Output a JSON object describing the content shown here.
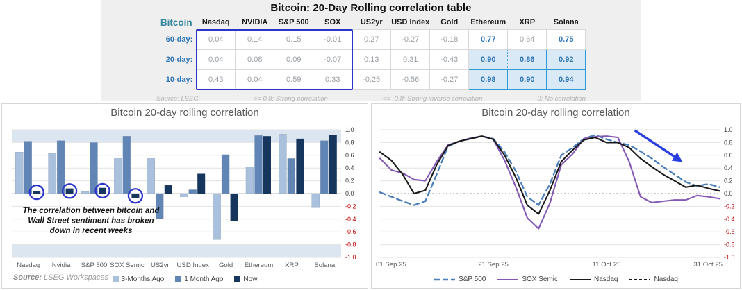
{
  "table": {
    "title": "Bitcoin: 20-Day Rolling correlation table",
    "corner_label": "Bitcoin",
    "columns": [
      "Nasdaq",
      "NVIDIA",
      "S&P 500",
      "SOX",
      "US2yr",
      "USD Index",
      "Gold",
      "Ethereum",
      "XRP",
      "Solana"
    ],
    "rows": [
      {
        "label": "60-day:",
        "values": [
          "0.04",
          "0.14",
          "0.15",
          "-0.01",
          "0.27",
          "-0.27",
          "-0.18",
          "0.77",
          "0.64",
          "0.75"
        ],
        "styles": [
          "plain",
          "plain",
          "plain",
          "plain",
          "plain",
          "plain",
          "plain",
          "blue",
          "muted",
          "blue"
        ]
      },
      {
        "label": "20-day:",
        "values": [
          "0.04",
          "0.08",
          "0.09",
          "-0.07",
          "0.13",
          "0.31",
          "-0.43",
          "0.90",
          "0.86",
          "0.92"
        ],
        "styles": [
          "plain",
          "plain",
          "plain",
          "plain",
          "plain",
          "plain",
          "plain",
          "fill-dot",
          "fill-dot",
          "fill-solid"
        ]
      },
      {
        "label": "10-day:",
        "values": [
          "0.43",
          "0.04",
          "0.59",
          "0.33",
          "-0.25",
          "-0.56",
          "-0.27",
          "0.98",
          "0.90",
          "0.94"
        ],
        "styles": [
          "plain",
          "plain",
          "plain",
          "plain",
          "plain",
          "plain",
          "plain",
          "fill-solid",
          "fill-solid",
          "fill-solid"
        ]
      }
    ],
    "footer_items": [
      "Source: LSEG",
      ">= 0.8: Strong correlation",
      "<= -0.8: Strong inverse correlation",
      "0: No correlation"
    ],
    "colors": {
      "highlight_box": "#2b35c9",
      "crypto_text": "#2e75b6",
      "crypto_fill": "#d9e9f5",
      "corner_teal": "#31859c"
    }
  },
  "chart_data": [
    {
      "type": "bar",
      "title": "Bitcoin 20-day rolling correlation",
      "categories": [
        "Nasdaq",
        "Nvidia",
        "S&P 500",
        "SOX Semic",
        "US2yr",
        "USD Index",
        "Gold",
        "Ethereum",
        "XRP",
        "Solana"
      ],
      "series": [
        {
          "name": "3-Months Ago",
          "color": "#a9c1dd",
          "values": [
            0.65,
            0.63,
            0.03,
            0.55,
            0.55,
            -0.05,
            -0.72,
            0.42,
            0.93,
            -0.22
          ]
        },
        {
          "name": "1 Month Ago",
          "color": "#6185b5",
          "values": [
            0.82,
            0.83,
            0.8,
            0.9,
            -0.4,
            0.06,
            0.61,
            0.91,
            0.55,
            0.83
          ]
        },
        {
          "name": "Now",
          "color": "#17365d",
          "values": [
            0.04,
            0.08,
            0.09,
            -0.07,
            0.13,
            0.31,
            -0.43,
            0.9,
            0.86,
            0.92
          ]
        }
      ],
      "circled_now_categories": [
        "Nasdaq",
        "Nvidia",
        "S&P 500",
        "SOX Semic"
      ],
      "ylim": [
        -1,
        1
      ],
      "ytick_step": 0.2,
      "highlight_bands": [
        [
          0.8,
          1.0
        ],
        [
          -1.0,
          -0.8
        ]
      ],
      "annotation_lines": [
        "The correlation between bitcoin and",
        "Wall Street sentiment has broken",
        "down in recent weeks"
      ],
      "source_label": "Source:",
      "source_value": "LSEG Workspaces",
      "negative_tick_color": "#c00000",
      "band_color": "#dce6f1",
      "circle_color": "#2b35c9"
    },
    {
      "type": "line",
      "title": "Bitcoin 20-day rolling correlation",
      "x_tick_labels": [
        "01 Sep 25",
        "21 Sep 25",
        "11 Oct 25",
        "31 Oct 25"
      ],
      "x_tick_days": [
        0,
        20,
        40,
        60
      ],
      "x_max_day": 60,
      "step_days": 2,
      "ylim": [
        -1,
        1
      ],
      "ytick_step": 0.2,
      "series": [
        {
          "name": "S&P 500",
          "style": "dashed",
          "color": "#4a7ebb",
          "values": [
            0.02,
            -0.05,
            -0.12,
            -0.18,
            -0.12,
            0.3,
            0.74,
            0.82,
            0.86,
            0.9,
            0.86,
            0.65,
            0.35,
            -0.05,
            -0.18,
            0.15,
            0.6,
            0.72,
            0.86,
            0.92,
            0.85,
            0.8,
            0.76,
            0.66,
            0.55,
            0.42,
            0.3,
            0.18,
            0.12,
            0.15,
            0.1
          ]
        },
        {
          "name": "SOX Semic",
          "style": "solid",
          "color": "#8459b3",
          "values": [
            0.55,
            0.37,
            0.32,
            0.22,
            0.2,
            0.5,
            0.76,
            0.82,
            0.87,
            0.9,
            0.85,
            0.52,
            0.1,
            -0.38,
            -0.55,
            -0.15,
            0.45,
            0.62,
            0.86,
            0.89,
            0.9,
            0.88,
            0.5,
            -0.05,
            -0.14,
            -0.12,
            -0.1,
            -0.1,
            -0.03,
            -0.05,
            -0.08
          ]
        },
        {
          "name": "Nasdaq",
          "style": "dashed-short",
          "color": "#1a1a1a",
          "values": [
            0.65,
            0.52,
            0.3,
            0.0,
            0.05,
            0.45,
            0.75,
            0.82,
            0.86,
            0.9,
            0.85,
            0.6,
            0.25,
            -0.18,
            -0.32,
            0.05,
            0.5,
            0.68,
            0.84,
            0.88,
            0.8,
            0.8,
            0.72,
            0.55,
            0.42,
            0.3,
            0.2,
            0.1,
            0.13,
            0.08,
            0.04
          ]
        },
        {
          "name": "Nasdaq",
          "style": "solid",
          "color": "#1a1a1a",
          "values": [
            0.65,
            0.52,
            0.3,
            0.0,
            0.05,
            0.45,
            0.75,
            0.82,
            0.86,
            0.9,
            0.85,
            0.6,
            0.25,
            -0.18,
            -0.32,
            0.05,
            0.5,
            0.68,
            0.84,
            0.88,
            0.8,
            0.8,
            0.72,
            0.55,
            0.42,
            0.3,
            0.2,
            0.1,
            0.13,
            0.08,
            0.04
          ]
        }
      ],
      "legend": [
        {
          "label": "S&P 500",
          "style": "dashed",
          "color": "#4a7ebb"
        },
        {
          "label": "SOX Semic",
          "style": "solid",
          "color": "#8459b3"
        },
        {
          "label": "Nasdaq",
          "style": "solid",
          "color": "#1a1a1a"
        },
        {
          "label": "Nasdaq",
          "style": "dashed-short",
          "color": "#1a1a1a"
        }
      ],
      "arrow": {
        "from_day": 45,
        "from_value": 0.99,
        "to_day": 53,
        "to_value": 0.52,
        "color": "#2a3fe0"
      },
      "negative_tick_color": "#c00000"
    }
  ]
}
